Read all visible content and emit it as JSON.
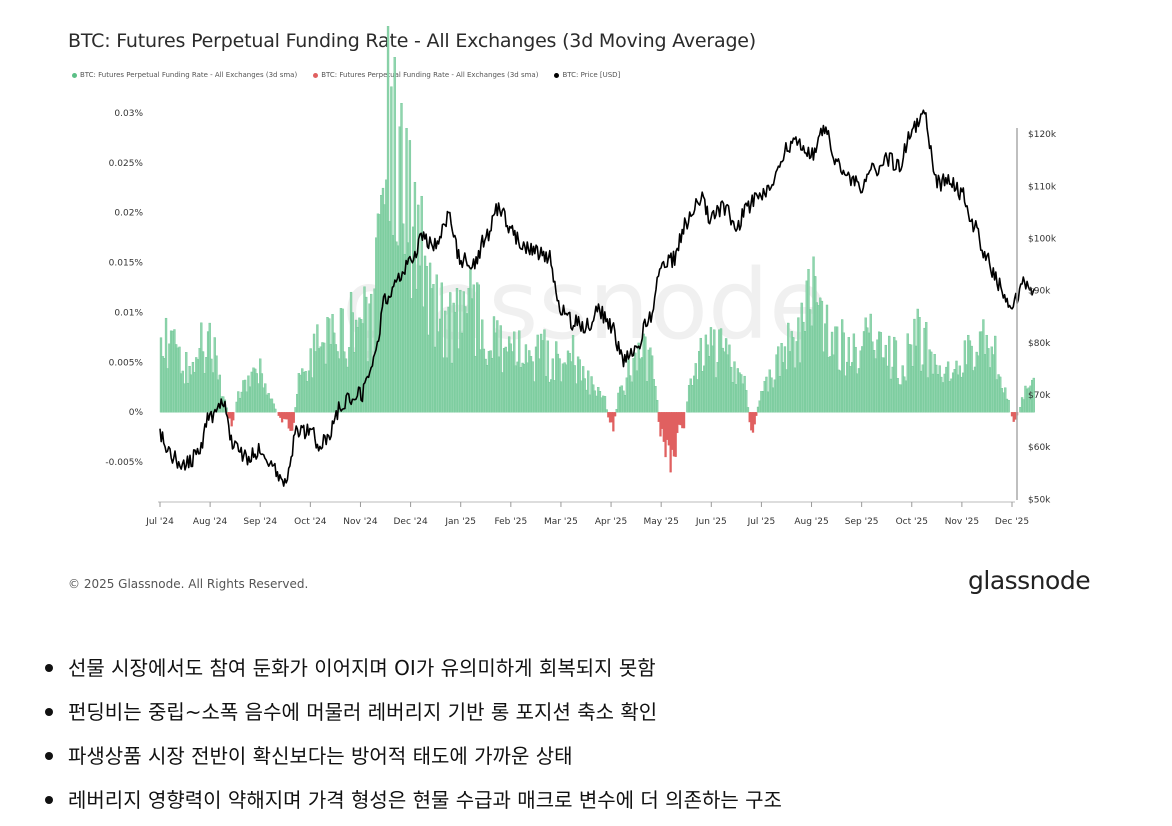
{
  "colors": {
    "positive": "#5bbf86",
    "positive_fill": "#8fd4ad",
    "negative": "#e06060",
    "price": "#000000"
  },
  "chart_data": {
    "type": "bar+line",
    "title": "BTC: Futures Perpetual Funding Rate - All Exchanges (3d Moving Average)",
    "legend": [
      {
        "label": "BTC: Futures Perpetual Funding Rate - All Exchanges (3d sma)",
        "color": "#5bbf86"
      },
      {
        "label": "BTC: Futures Perpetual Funding Rate - All Exchanges (3d sma)",
        "color": "#e06060"
      },
      {
        "label": "BTC: Price [USD]",
        "color": "#000000"
      }
    ],
    "x_ticks": [
      "Jul '24",
      "Aug '24",
      "Sep '24",
      "Oct '24",
      "Nov '24",
      "Dec '24",
      "Jan '25",
      "Feb '25",
      "Mar '25",
      "Apr '25",
      "May '25",
      "Jun '25",
      "Jul '25",
      "Aug '25",
      "Sep '25",
      "Oct '25",
      "Nov '25",
      "Dec '25"
    ],
    "left_axis": {
      "ticks": [
        "-0.005%",
        "0%",
        "0.005%",
        "0.01%",
        "0.015%",
        "0.02%",
        "0.025%",
        "0.03%"
      ],
      "tick_values": [
        -0.005,
        0,
        0.005,
        0.01,
        0.015,
        0.02,
        0.025,
        0.03
      ],
      "range": [
        -0.009,
        0.0305
      ]
    },
    "right_axis": {
      "ticks": [
        "$50k",
        "$60k",
        "$70k",
        "$80k",
        "$90k",
        "$100k",
        "$110k",
        "$120k"
      ],
      "tick_values": [
        50000,
        60000,
        70000,
        80000,
        90000,
        100000,
        110000,
        120000
      ],
      "range": [
        49500,
        125000
      ]
    },
    "funding_rate_pct_monthly": [
      {
        "month": "Jul '24",
        "values": [
          0.0065,
          0.0072,
          0.0055,
          0.0038,
          0.0062
        ]
      },
      {
        "month": "Aug '24",
        "values": [
          0.0068,
          0.0025,
          -0.0012,
          0.0022,
          0.0045
        ]
      },
      {
        "month": "Sep '24",
        "values": [
          0.0038,
          0.0012,
          -0.0008,
          -0.0015,
          0.0035
        ]
      },
      {
        "month": "Oct '24",
        "values": [
          0.0058,
          0.0062,
          0.0068,
          0.0075,
          0.0085
        ]
      },
      {
        "month": "Nov '24",
        "values": [
          0.0095,
          0.0082,
          0.0195,
          0.03,
          0.022
        ]
      },
      {
        "month": "Dec '24",
        "values": [
          0.02,
          0.016,
          0.012,
          0.0098,
          0.0085
        ]
      },
      {
        "month": "Jan '25",
        "values": [
          0.0095,
          0.0102,
          0.0085,
          0.0075,
          0.0062
        ]
      },
      {
        "month": "Feb '25",
        "values": [
          0.0065,
          0.0055,
          0.0045,
          0.0068,
          0.0052
        ]
      },
      {
        "month": "Mar '25",
        "values": [
          0.0045,
          0.0058,
          0.0035,
          0.0028,
          0.0018
        ]
      },
      {
        "month": "Apr '25",
        "values": [
          -0.0015,
          0.0025,
          0.0042,
          0.0055,
          0.0045
        ]
      },
      {
        "month": "May '25",
        "values": [
          -0.0028,
          -0.0045,
          -0.0015,
          0.0035,
          0.0058
        ]
      },
      {
        "month": "Jun '25",
        "values": [
          0.0062,
          0.0058,
          0.0048,
          0.0035,
          -0.0018
        ]
      },
      {
        "month": "Jul '25",
        "values": [
          0.0022,
          0.0038,
          0.0052,
          0.0068,
          0.0085
        ]
      },
      {
        "month": "Aug '25",
        "values": [
          0.0108,
          0.0092,
          0.0078,
          0.0065,
          0.0058
        ]
      },
      {
        "month": "Sep '25",
        "values": [
          0.0072,
          0.0085,
          0.0062,
          0.0055,
          0.0048
        ]
      },
      {
        "month": "Oct '25",
        "values": [
          0.0075,
          0.0068,
          0.0048,
          0.0028,
          0.0042
        ]
      },
      {
        "month": "Nov '25",
        "values": [
          0.0055,
          0.0062,
          0.0072,
          0.0058,
          0.0035
        ]
      },
      {
        "month": "Dec '25",
        "values": [
          -0.0008,
          0.0025,
          0.0028
        ]
      }
    ],
    "price_usd_monthly": [
      {
        "month": "Jul '24",
        "values": [
          62000,
          58000,
          56500,
          58500
        ]
      },
      {
        "month": "Aug '24",
        "values": [
          66000,
          68000,
          60000,
          58000
        ]
      },
      {
        "month": "Sep '24",
        "values": [
          59500,
          56500,
          53500,
          63000
        ]
      },
      {
        "month": "Oct '24",
        "values": [
          63000,
          60500,
          63000,
          67500,
          69500
        ]
      },
      {
        "month": "Nov '24",
        "values": [
          70000,
          76000,
          88500,
          92500
        ]
      },
      {
        "month": "Dec '24",
        "values": [
          96000,
          100000,
          99000,
          104000
        ]
      },
      {
        "month": "Jan '25",
        "values": [
          96000,
          94500,
          100000,
          106000
        ]
      },
      {
        "month": "Feb '25",
        "values": [
          102000,
          98000,
          97500,
          96500
        ]
      },
      {
        "month": "Mar '25",
        "values": [
          86000,
          84000,
          83000,
          86500
        ]
      },
      {
        "month": "Apr '25",
        "values": [
          83000,
          77000,
          78500,
          84500
        ]
      },
      {
        "month": "May '25",
        "values": [
          94000,
          96000,
          103000,
          108000
        ]
      },
      {
        "month": "Jun '25",
        "values": [
          104000,
          106000,
          102500,
          106500
        ]
      },
      {
        "month": "Jul '25",
        "values": [
          108000,
          111000,
          117500,
          118500
        ]
      },
      {
        "month": "Aug '25",
        "values": [
          116000,
          121000,
          114000,
          111500
        ]
      },
      {
        "month": "Sep '25",
        "values": [
          110000,
          113000,
          115500,
          114000
        ]
      },
      {
        "month": "Oct '25",
        "values": [
          121000,
          124000,
          110500,
          111000
        ]
      },
      {
        "month": "Nov '25",
        "values": [
          108500,
          102000,
          96000,
          91000
        ]
      },
      {
        "month": "Dec '25",
        "values": [
          87000,
          91500,
          89000,
          87000
        ]
      }
    ],
    "watermark": "glassnode"
  },
  "footer": {
    "copyright": "© 2025 Glassnode. All Rights Reserved.",
    "brand": "glassnode"
  },
  "bullets": [
    "선물 시장에서도 참여 둔화가 이어지며 OI가 유의미하게 회복되지 못함",
    "펀딩비는 중립~소폭 음수에 머물러 레버리지 기반 롱 포지션 축소 확인",
    "파생상품 시장 전반이 확신보다는 방어적 태도에 가까운 상태",
    "레버리지 영향력이 약해지며 가격 형성은 현물 수급과 매크로 변수에 더 의존하는 구조"
  ]
}
